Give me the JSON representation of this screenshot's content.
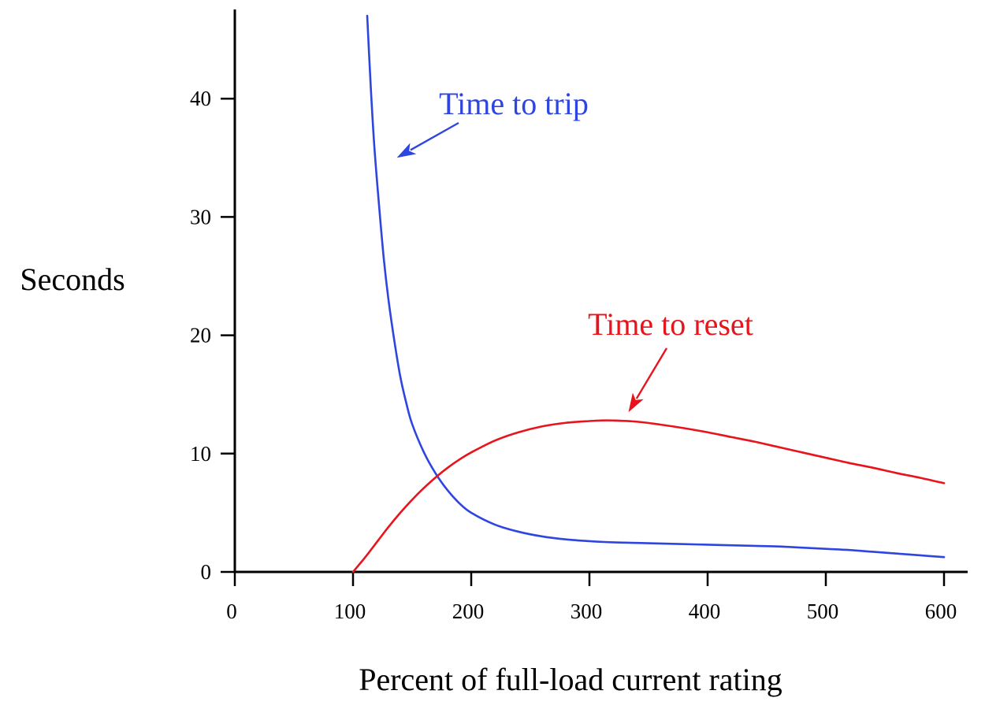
{
  "chart_data": {
    "type": "line",
    "xlabel": "Percent of full-load current rating",
    "ylabel": "Seconds",
    "xlim": [
      0,
      600
    ],
    "ylim": [
      0,
      47
    ],
    "xticks": [
      0,
      100,
      200,
      300,
      400,
      500,
      600
    ],
    "yticks": [
      0,
      10,
      20,
      30,
      40
    ],
    "grid": false,
    "legend": "none",
    "series": [
      {
        "color": "#2f45e0",
        "x": [
          112,
          115,
          118,
          122,
          126,
          130,
          135,
          140,
          145,
          150,
          160,
          170,
          180,
          190,
          200,
          220,
          240,
          260,
          280,
          300,
          320,
          340,
          360,
          380,
          400,
          420,
          440,
          460,
          480,
          500,
          520,
          540,
          560,
          580,
          600
        ],
        "y": [
          47,
          41,
          36,
          31,
          26.5,
          23,
          19.5,
          16.5,
          14.3,
          12.5,
          10.1,
          8.3,
          6.9,
          5.8,
          5.0,
          4.0,
          3.4,
          3.0,
          2.75,
          2.6,
          2.5,
          2.45,
          2.4,
          2.35,
          2.3,
          2.25,
          2.2,
          2.15,
          2.05,
          1.95,
          1.85,
          1.7,
          1.55,
          1.4,
          1.25
        ]
      },
      {
        "color": "#e8131b",
        "x": [
          100,
          110,
          120,
          130,
          140,
          150,
          160,
          170,
          180,
          190,
          200,
          220,
          240,
          260,
          280,
          300,
          310,
          320,
          340,
          360,
          380,
          400,
          420,
          440,
          460,
          480,
          500,
          520,
          540,
          560,
          580,
          600
        ],
        "y": [
          0,
          1.2,
          2.5,
          3.8,
          5.0,
          6.1,
          7.1,
          8.0,
          8.8,
          9.5,
          10.1,
          11.1,
          11.8,
          12.3,
          12.6,
          12.75,
          12.8,
          12.8,
          12.7,
          12.45,
          12.15,
          11.8,
          11.4,
          11.0,
          10.55,
          10.1,
          9.65,
          9.2,
          8.8,
          8.35,
          7.95,
          7.5
        ]
      }
    ],
    "annotations": [
      {
        "text": "Time to trip",
        "color": "#2f45e0",
        "arrow_to": [
          137,
          35
        ]
      },
      {
        "text": "Time to reset",
        "color": "#e8131b",
        "arrow_to": [
          333,
          13.5
        ]
      }
    ]
  }
}
